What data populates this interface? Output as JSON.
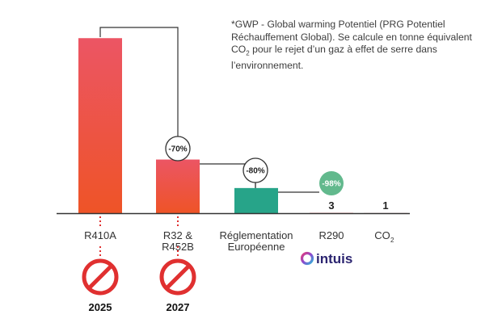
{
  "note": {
    "part1": "*GWP - Global warming Potentiel (PRG Potentiel Réchauffement Global). Se calcule en tonne équivalent CO",
    "co2_sub": "2",
    "part2": " pour le rejet d’un gaz à effet de serre dans l’environnement."
  },
  "chart_data": {
    "type": "bar",
    "title": "",
    "xlabel": "",
    "ylabel": "",
    "categories": [
      [
        "R410A"
      ],
      [
        "R32 &",
        "R452B"
      ],
      [
        "Réglementation",
        "Européenne"
      ],
      [
        "R290"
      ],
      [
        "CO2"
      ]
    ],
    "values": [
      2088,
      640,
      300,
      3,
      1
    ],
    "value_labels": [
      "",
      "",
      "",
      "3",
      "1"
    ],
    "ylim": [
      0,
      2100
    ],
    "reduction_badges": [
      "-70%",
      "-80%",
      "-98%"
    ],
    "ban_years": [
      "2025",
      "2027"
    ],
    "colors": {
      "refrigerant_top": "#ec5564",
      "refrigerant_bottom": "#ee5427",
      "regulation": "#27a489",
      "badge_green": "#62b98d",
      "connector": "#333333",
      "ban_red": "#e03030",
      "axis": "#333333"
    }
  },
  "brand": {
    "name": "intuis",
    "colors": {
      "ring_start": "#e43a7b",
      "ring_mid": "#8a4bd0",
      "ring_end": "#2fb4d8",
      "text": "#2b2470"
    }
  }
}
